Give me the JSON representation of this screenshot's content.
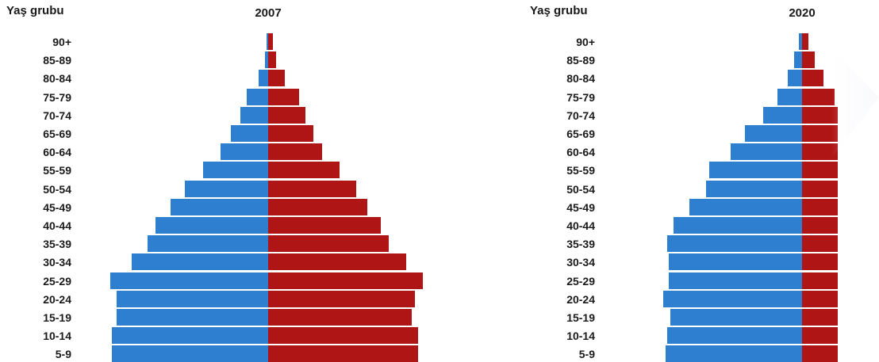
{
  "chart_data": [
    {
      "type": "bar",
      "title": "2007",
      "ylabel": "Yaş grubu",
      "categories": [
        "90+",
        "85-89",
        "80-84",
        "75-79",
        "70-74",
        "65-69",
        "60-64",
        "55-59",
        "50-54",
        "45-49",
        "40-44",
        "35-39",
        "30-34",
        "25-29",
        "20-24",
        "15-19",
        "10-14",
        "5-9"
      ],
      "series": [
        {
          "values": [
            1,
            2,
            6,
            14,
            18,
            24,
            31,
            42,
            54,
            63,
            73,
            78,
            88,
            102,
            98,
            98,
            101,
            101
          ]
        },
        {
          "values": [
            3,
            5,
            11,
            20,
            24,
            29,
            35,
            46,
            57,
            64,
            73,
            78,
            89,
            100,
            95,
            93,
            97,
            97
          ]
        }
      ],
      "colors": [
        "#2e7fd0",
        "#b01515"
      ],
      "xlim": [
        -110,
        110
      ]
    },
    {
      "type": "bar",
      "title": "2020",
      "ylabel": "Yaş grubu",
      "categories": [
        "90+",
        "85-89",
        "80-84",
        "75-79",
        "70-74",
        "65-69",
        "60-64",
        "55-59",
        "50-54",
        "45-49",
        "40-44",
        "35-39",
        "30-34",
        "25-29",
        "20-24",
        "15-19",
        "10-14",
        "5-9"
      ],
      "series": [
        {
          "values": [
            2,
            5,
            9,
            16,
            25,
            37,
            46,
            60,
            62,
            73,
            83,
            87,
            86,
            86,
            90,
            85,
            87,
            88
          ]
        },
        {
          "values": [
            4,
            8,
            14,
            21,
            23,
            23,
            23,
            23,
            23,
            23,
            23,
            23,
            23,
            23,
            23,
            23,
            23,
            23
          ]
        }
      ],
      "colors": [
        "#2e7fd0",
        "#b01515"
      ],
      "xlim": [
        -110,
        110
      ]
    }
  ]
}
